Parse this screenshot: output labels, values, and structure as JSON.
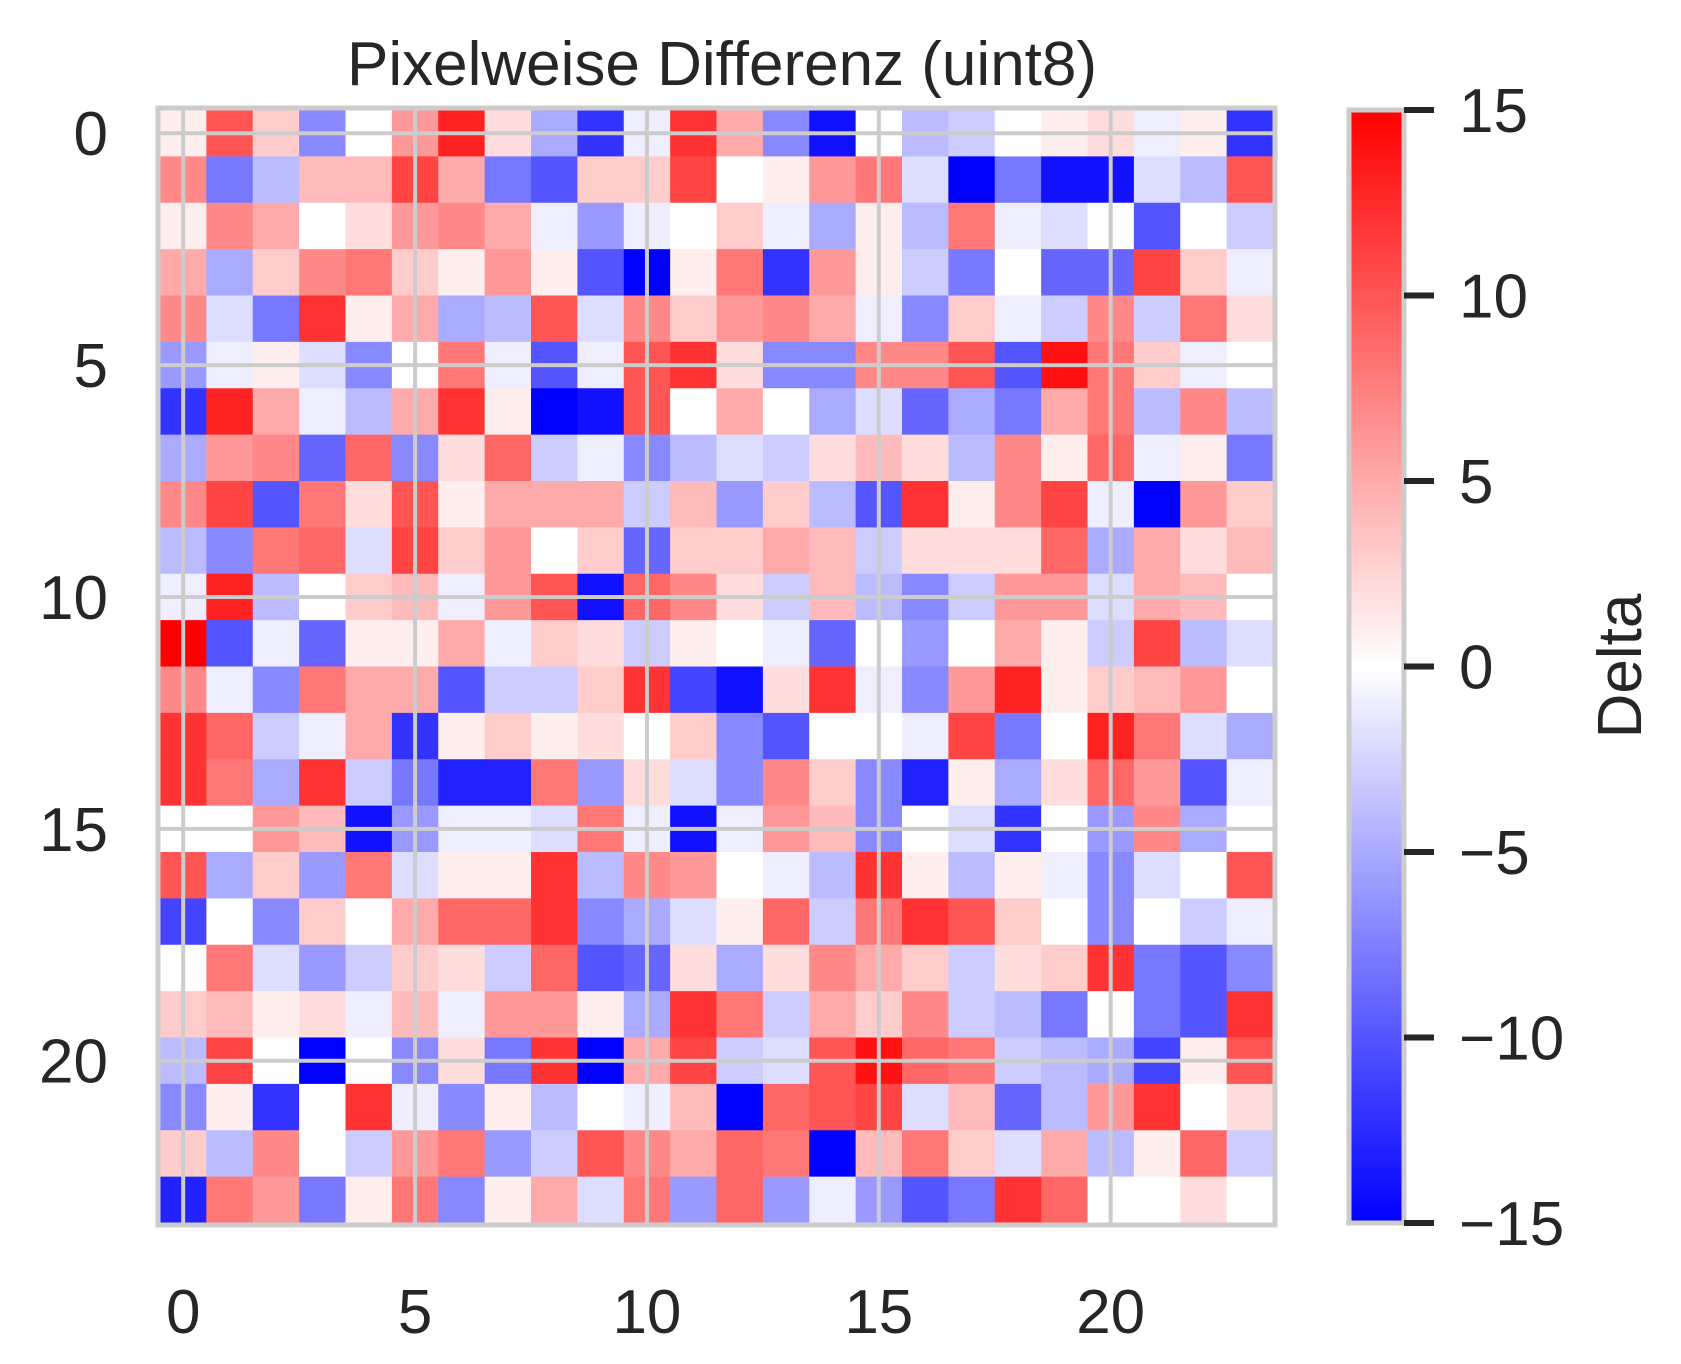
{
  "chart_data": {
    "type": "heatmap",
    "title": "Pixelweise Differenz (uint8)",
    "x_ticks": [
      "0",
      "5",
      "10",
      "15",
      "20"
    ],
    "y_ticks": [
      "0",
      "5",
      "10",
      "15",
      "20"
    ],
    "x_tick_values": [
      0,
      5,
      10,
      15,
      20
    ],
    "y_tick_values": [
      0,
      5,
      10,
      15,
      20
    ],
    "n_rows": 24,
    "n_cols": 24,
    "grid": true,
    "colormap": "bwr",
    "vmin": -15,
    "vmax": 15,
    "colorbar": {
      "label": "Delta",
      "ticks": [
        "−15",
        "−10",
        "−5",
        "0",
        "5",
        "10",
        "15"
      ],
      "tick_values": [
        -15,
        -10,
        -5,
        0,
        5,
        10,
        15
      ]
    },
    "values": [
      [
        1,
        10,
        3,
        -7,
        0,
        6,
        13,
        2,
        -5,
        -12,
        -1,
        12,
        5,
        -7,
        -14,
        0,
        -4,
        -3,
        0,
        1,
        2,
        -1,
        1,
        -12
      ],
      [
        7,
        -8,
        -4,
        4,
        4,
        11,
        5,
        -8,
        -10,
        3,
        3,
        11,
        0,
        1,
        6,
        8,
        -2,
        -15,
        -8,
        -14,
        -14,
        -2,
        -4,
        10
      ],
      [
        1,
        7,
        5,
        0,
        2,
        6,
        7,
        5,
        -1,
        -6,
        -1,
        0,
        3,
        -1,
        -5,
        1,
        -4,
        8,
        -1,
        -2,
        0,
        -10,
        0,
        -3
      ],
      [
        5,
        -5,
        3,
        7,
        8,
        3,
        1,
        6,
        1,
        -10,
        -15,
        1,
        8,
        -12,
        6,
        1,
        -3,
        -8,
        0,
        -9,
        -9,
        11,
        3,
        -1
      ],
      [
        7,
        -2,
        -8,
        12,
        1,
        5,
        -5,
        -4,
        10,
        -2,
        7,
        3,
        6,
        7,
        5,
        -1,
        -7,
        3,
        -1,
        -3,
        7,
        -3,
        8,
        2
      ],
      [
        -6,
        -1,
        1,
        -2,
        -7,
        0,
        8,
        -1,
        -10,
        -1,
        10,
        12,
        2,
        -7,
        -7,
        7,
        7,
        10,
        -10,
        14,
        8,
        3,
        -1,
        0
      ],
      [
        -12,
        13,
        5,
        -1,
        -4,
        5,
        12,
        1,
        -15,
        -14,
        10,
        0,
        5,
        0,
        -5,
        -2,
        -9,
        -5,
        -8,
        5,
        8,
        -4,
        7,
        -4
      ],
      [
        -5,
        6,
        7,
        -9,
        9,
        -7,
        2,
        9,
        -3,
        -1,
        -7,
        -4,
        -2,
        -3,
        2,
        4,
        2,
        -4,
        7,
        1,
        9,
        -1,
        1,
        -8
      ],
      [
        7,
        11,
        -10,
        8,
        2,
        10,
        1,
        5,
        5,
        5,
        -3,
        4,
        -6,
        3,
        -4,
        -10,
        12,
        1,
        7,
        11,
        -1,
        -15,
        6,
        3
      ],
      [
        -4,
        -7,
        8,
        9,
        -2,
        11,
        3,
        6,
        0,
        3,
        -9,
        3,
        3,
        5,
        4,
        -3,
        2,
        2,
        2,
        9,
        -5,
        5,
        2,
        4
      ],
      [
        -1,
        13,
        -4,
        0,
        3,
        4,
        -1,
        6,
        10,
        -14,
        9,
        7,
        2,
        -3,
        4,
        -4,
        -7,
        -3,
        6,
        6,
        -2,
        5,
        4,
        0
      ],
      [
        15,
        -10,
        -1,
        -9,
        1,
        1,
        5,
        -1,
        3,
        2,
        -3,
        1,
        0,
        -1,
        -9,
        0,
        -6,
        0,
        5,
        1,
        -3,
        11,
        -4,
        -2
      ],
      [
        7,
        -1,
        -7,
        8,
        5,
        5,
        -10,
        -3,
        -3,
        3,
        12,
        -11,
        -14,
        2,
        12,
        -1,
        -7,
        6,
        13,
        1,
        3,
        4,
        6,
        0
      ],
      [
        12,
        9,
        -3,
        -1,
        5,
        -12,
        1,
        3,
        1,
        2,
        0,
        3,
        -7,
        -10,
        0,
        0,
        -1,
        11,
        -8,
        0,
        13,
        8,
        -2,
        -5
      ],
      [
        12,
        8,
        -5,
        12,
        -3,
        -8,
        -13,
        -13,
        8,
        -6,
        2,
        -2,
        -7,
        7,
        3,
        -7,
        -13,
        1,
        -5,
        2,
        9,
        6,
        -10,
        -1
      ],
      [
        0,
        0,
        6,
        4,
        -14,
        -6,
        -1,
        -1,
        -2,
        8,
        -1,
        -14,
        -1,
        6,
        4,
        -7,
        0,
        -2,
        -12,
        0,
        -6,
        7,
        -5,
        0
      ],
      [
        10,
        -5,
        3,
        -6,
        8,
        -2,
        1,
        1,
        12,
        -4,
        7,
        6,
        0,
        -1,
        -4,
        12,
        1,
        -4,
        1,
        -1,
        -7,
        -2,
        0,
        10
      ],
      [
        -11,
        0,
        -7,
        3,
        0,
        5,
        9,
        9,
        12,
        -7,
        -5,
        -2,
        1,
        9,
        -3,
        8,
        12,
        10,
        3,
        0,
        -7,
        0,
        -3,
        -1
      ],
      [
        0,
        8,
        -2,
        -6,
        -3,
        3,
        2,
        -3,
        9,
        -10,
        -9,
        2,
        -5,
        2,
        7,
        5,
        3,
        -3,
        2,
        3,
        12,
        -8,
        -10,
        -7
      ],
      [
        3,
        4,
        1,
        2,
        -1,
        4,
        -1,
        6,
        6,
        1,
        -5,
        12,
        8,
        -3,
        5,
        3,
        7,
        -3,
        -4,
        -8,
        0,
        -8,
        -10,
        12
      ],
      [
        -4,
        11,
        0,
        -15,
        0,
        -7,
        2,
        -8,
        12,
        -15,
        5,
        11,
        -3,
        -2,
        10,
        14,
        9,
        8,
        -3,
        -4,
        -5,
        -11,
        1,
        10
      ],
      [
        -7,
        1,
        -12,
        0,
        12,
        -1,
        -7,
        1,
        -4,
        0,
        -1,
        4,
        -15,
        9,
        10,
        11,
        -2,
        4,
        -9,
        -4,
        6,
        12,
        0,
        2
      ],
      [
        3,
        -4,
        7,
        0,
        -3,
        6,
        8,
        -6,
        -3,
        10,
        7,
        5,
        9,
        8,
        -15,
        4,
        8,
        3,
        -2,
        5,
        -4,
        1,
        9,
        -3
      ],
      [
        -13,
        8,
        6,
        -8,
        1,
        8,
        -7,
        1,
        5,
        -2,
        8,
        -6,
        9,
        -6,
        -1,
        -6,
        -10,
        -8,
        12,
        9,
        0,
        0,
        2,
        0
      ]
    ]
  }
}
